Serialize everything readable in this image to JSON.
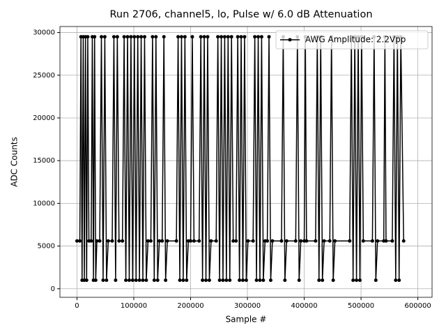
{
  "chart_data": {
    "type": "line",
    "title": "Run 2706, channel5, lo, Pulse w/ 6.0 dB Attenuation",
    "xlabel": "Sample #",
    "ylabel": "ADC Counts",
    "xlim": [
      -30000,
      625000
    ],
    "ylim": [
      -1000,
      30700
    ],
    "xticks": [
      0,
      100000,
      200000,
      300000,
      400000,
      500000,
      600000
    ],
    "yticks": [
      0,
      5000,
      10000,
      15000,
      20000,
      25000,
      30000
    ],
    "grid": true,
    "legend": "upper right",
    "x": [
      0,
      5000,
      7000,
      9000,
      11000,
      13000,
      15000,
      17000,
      19000,
      21000,
      25000,
      27000,
      29000,
      31000,
      33000,
      35000,
      40000,
      43000,
      46000,
      49000,
      52000,
      55000,
      62000,
      65000,
      68000,
      71000,
      74000,
      80000,
      83000,
      86000,
      89000,
      92000,
      95000,
      98000,
      101000,
      104000,
      107000,
      110000,
      113000,
      116000,
      119000,
      122000,
      125000,
      130000,
      133000,
      136000,
      139000,
      142000,
      145000,
      150000,
      153000,
      156000,
      159000,
      175000,
      178000,
      181000,
      184000,
      187000,
      190000,
      193000,
      196000,
      200000,
      203000,
      206000,
      215000,
      218000,
      221000,
      224000,
      227000,
      230000,
      233000,
      236000,
      245000,
      248000,
      251000,
      254000,
      257000,
      260000,
      263000,
      266000,
      269000,
      272000,
      275000,
      280000,
      283000,
      286000,
      289000,
      292000,
      295000,
      298000,
      301000,
      310000,
      313000,
      316000,
      319000,
      322000,
      325000,
      328000,
      331000,
      335000,
      338000,
      341000,
      344000,
      360000,
      363000,
      366000,
      369000,
      385000,
      388000,
      391000,
      394000,
      400000,
      402000,
      404000,
      420000,
      423000,
      426000,
      429000,
      432000,
      435000,
      445000,
      448000,
      451000,
      454000,
      480000,
      483000,
      486000,
      489000,
      492000,
      495000,
      498000,
      501000,
      504000,
      520000,
      523000,
      526000,
      529000,
      540000,
      542000,
      544000,
      555000,
      558000,
      561000,
      564000,
      567000,
      570000,
      575000
    ],
    "series": [
      {
        "name": "AWG Amplitude: 2.2Vpp",
        "color": "#000000",
        "values": [
          5600,
          5600,
          29500,
          1000,
          29500,
          1000,
          29500,
          1000,
          29500,
          5600,
          5600,
          29500,
          1000,
          29500,
          1000,
          5600,
          5600,
          29500,
          1000,
          29500,
          1000,
          5600,
          5600,
          29500,
          1000,
          29500,
          5600,
          5600,
          29500,
          1000,
          29500,
          1000,
          29500,
          1000,
          29500,
          1000,
          29500,
          1000,
          29500,
          1000,
          29500,
          1000,
          5600,
          5600,
          29500,
          1000,
          29500,
          1000,
          5600,
          5600,
          29500,
          1000,
          5600,
          5600,
          29500,
          1000,
          29500,
          1000,
          29500,
          1000,
          5600,
          5600,
          29500,
          5600,
          5600,
          29500,
          1000,
          29500,
          1000,
          29500,
          1000,
          5600,
          5600,
          29500,
          1000,
          29500,
          1000,
          29500,
          1000,
          29500,
          1000,
          29500,
          5600,
          5600,
          29500,
          1000,
          29500,
          1000,
          29500,
          1000,
          5600,
          5600,
          29500,
          1000,
          29500,
          1000,
          29500,
          1000,
          5600,
          5600,
          29500,
          1000,
          5600,
          5600,
          29500,
          1000,
          5600,
          5600,
          29500,
          1000,
          5600,
          5600,
          29500,
          5600,
          5600,
          29500,
          1000,
          29500,
          1000,
          5600,
          5600,
          29500,
          1000,
          5600,
          5600,
          29500,
          1000,
          29500,
          1000,
          29500,
          1000,
          29500,
          5600,
          5600,
          29500,
          1000,
          5600,
          5600,
          29500,
          5600,
          5600,
          29500,
          1000,
          29500,
          1000,
          29500,
          5600
        ]
      }
    ]
  }
}
